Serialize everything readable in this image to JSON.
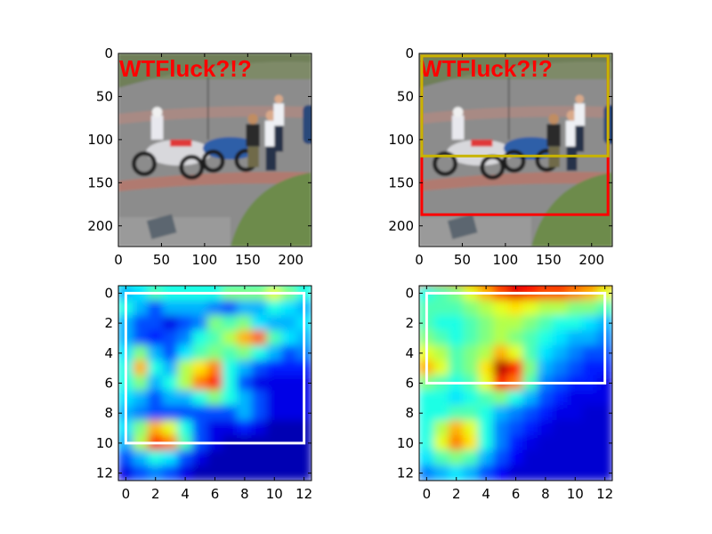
{
  "chart_data": [
    {
      "type": "image",
      "position": "top-left",
      "image_text": "WTFluck?!?",
      "scene": "police officers standing beside parked motorcycles on a road",
      "xlim": [
        0,
        224
      ],
      "ylim": [
        224,
        0
      ],
      "x_ticks": [
        "0",
        "50",
        "100",
        "150",
        "200"
      ],
      "y_ticks": [
        "0",
        "50",
        "100",
        "150",
        "200"
      ],
      "boxes": []
    },
    {
      "type": "image",
      "position": "top-right",
      "image_text": "WTFluck?!?",
      "scene": "police officers standing beside parked motorcycles on a road",
      "xlim": [
        0,
        224
      ],
      "ylim": [
        224,
        0
      ],
      "x_ticks": [
        "0",
        "50",
        "100",
        "150",
        "200"
      ],
      "y_ticks": [
        "0",
        "50",
        "100",
        "150",
        "200"
      ],
      "boxes": [
        {
          "color": "#ff0000",
          "x0": 3,
          "y0": 3,
          "x1": 219,
          "y1": 187
        },
        {
          "color": "#c8b400",
          "x0": 3,
          "y0": 3,
          "x1": 219,
          "y1": 119
        }
      ]
    },
    {
      "type": "heatmap",
      "position": "bottom-left",
      "colormap": "jet",
      "xlim": [
        -0.5,
        12.5
      ],
      "ylim": [
        12.5,
        -0.5
      ],
      "x_ticks": [
        "0",
        "2",
        "4",
        "6",
        "8",
        "10",
        "12"
      ],
      "y_ticks": [
        "0",
        "2",
        "4",
        "6",
        "8",
        "10",
        "12"
      ],
      "box": {
        "color": "#ffffff",
        "x0": 0,
        "y0": 0,
        "x1": 12,
        "y1": 10
      },
      "values": [
        [
          0.3,
          0.35,
          0.45,
          0.4,
          0.4,
          0.4,
          0.4,
          0.5,
          0.5,
          0.5,
          0.6,
          0.5,
          0.4
        ],
        [
          0.4,
          0.3,
          0.2,
          0.3,
          0.3,
          0.3,
          0.25,
          0.2,
          0.3,
          0.3,
          0.4,
          0.35,
          0.3
        ],
        [
          0.3,
          0.2,
          0.2,
          0.1,
          0.2,
          0.25,
          0.5,
          0.45,
          0.5,
          0.35,
          0.3,
          0.3,
          0.35
        ],
        [
          0.3,
          0.2,
          0.15,
          0.2,
          0.25,
          0.4,
          0.45,
          0.55,
          0.7,
          0.78,
          0.45,
          0.35,
          0.3
        ],
        [
          0.35,
          0.5,
          0.3,
          0.2,
          0.35,
          0.45,
          0.5,
          0.45,
          0.5,
          0.4,
          0.3,
          0.2,
          0.25
        ],
        [
          0.4,
          0.7,
          0.4,
          0.3,
          0.55,
          0.65,
          0.75,
          0.4,
          0.3,
          0.2,
          0.15,
          0.15,
          0.15
        ],
        [
          0.4,
          0.5,
          0.3,
          0.4,
          0.55,
          0.75,
          0.85,
          0.4,
          0.2,
          0.1,
          0.1,
          0.1,
          0.1
        ],
        [
          0.35,
          0.3,
          0.2,
          0.3,
          0.3,
          0.4,
          0.5,
          0.4,
          0.3,
          0.2,
          0.1,
          0.1,
          0.1
        ],
        [
          0.3,
          0.25,
          0.2,
          0.2,
          0.2,
          0.2,
          0.2,
          0.2,
          0.3,
          0.2,
          0.1,
          0.1,
          0.1
        ],
        [
          0.35,
          0.5,
          0.7,
          0.6,
          0.4,
          0.2,
          0.1,
          0.1,
          0.15,
          0.1,
          0.05,
          0.05,
          0.05
        ],
        [
          0.3,
          0.55,
          0.85,
          0.75,
          0.45,
          0.2,
          0.1,
          0.05,
          0.05,
          0.05,
          0.05,
          0.05,
          0.05
        ],
        [
          0.2,
          0.3,
          0.4,
          0.35,
          0.2,
          0.1,
          0.05,
          0.05,
          0.05,
          0.05,
          0.05,
          0.05,
          0.05
        ],
        [
          0.1,
          0.2,
          0.25,
          0.2,
          0.1,
          0.05,
          0.05,
          0.05,
          0.05,
          0.05,
          0.05,
          0.05,
          0.05
        ]
      ]
    },
    {
      "type": "heatmap",
      "position": "bottom-right",
      "colormap": "jet",
      "xlim": [
        -0.5,
        12.5
      ],
      "ylim": [
        12.5,
        -0.5
      ],
      "x_ticks": [
        "0",
        "2",
        "4",
        "6",
        "8",
        "10",
        "12"
      ],
      "y_ticks": [
        "0",
        "2",
        "4",
        "6",
        "8",
        "10",
        "12"
      ],
      "box": {
        "color": "#ffffff",
        "x0": 0,
        "y0": 0,
        "x1": 12,
        "y1": 6
      },
      "values": [
        [
          0.4,
          0.45,
          0.5,
          0.6,
          0.7,
          0.8,
          0.9,
          0.85,
          0.8,
          0.8,
          0.75,
          0.7,
          0.6
        ],
        [
          0.45,
          0.45,
          0.45,
          0.5,
          0.55,
          0.6,
          0.65,
          0.6,
          0.55,
          0.55,
          0.5,
          0.5,
          0.45
        ],
        [
          0.45,
          0.4,
          0.4,
          0.45,
          0.5,
          0.55,
          0.55,
          0.5,
          0.45,
          0.4,
          0.4,
          0.35,
          0.3
        ],
        [
          0.5,
          0.45,
          0.4,
          0.45,
          0.5,
          0.55,
          0.5,
          0.45,
          0.4,
          0.35,
          0.3,
          0.3,
          0.25
        ],
        [
          0.6,
          0.55,
          0.45,
          0.5,
          0.55,
          0.7,
          0.6,
          0.45,
          0.35,
          0.3,
          0.25,
          0.2,
          0.2
        ],
        [
          0.7,
          0.6,
          0.45,
          0.5,
          0.65,
          0.95,
          0.85,
          0.5,
          0.3,
          0.25,
          0.2,
          0.15,
          0.15
        ],
        [
          0.5,
          0.45,
          0.4,
          0.45,
          0.6,
          0.85,
          0.75,
          0.45,
          0.25,
          0.2,
          0.15,
          0.15,
          0.1
        ],
        [
          0.4,
          0.4,
          0.35,
          0.4,
          0.45,
          0.5,
          0.4,
          0.3,
          0.2,
          0.15,
          0.1,
          0.1,
          0.1
        ],
        [
          0.4,
          0.4,
          0.45,
          0.45,
          0.4,
          0.3,
          0.25,
          0.2,
          0.15,
          0.1,
          0.1,
          0.08,
          0.08
        ],
        [
          0.4,
          0.55,
          0.7,
          0.6,
          0.4,
          0.25,
          0.2,
          0.15,
          0.1,
          0.08,
          0.08,
          0.08,
          0.08
        ],
        [
          0.4,
          0.6,
          0.75,
          0.65,
          0.4,
          0.25,
          0.15,
          0.1,
          0.08,
          0.08,
          0.08,
          0.08,
          0.08
        ],
        [
          0.35,
          0.45,
          0.5,
          0.45,
          0.3,
          0.2,
          0.12,
          0.08,
          0.08,
          0.08,
          0.08,
          0.08,
          0.08
        ],
        [
          0.25,
          0.3,
          0.35,
          0.3,
          0.2,
          0.12,
          0.08,
          0.08,
          0.08,
          0.08,
          0.08,
          0.08,
          0.08
        ]
      ]
    }
  ]
}
